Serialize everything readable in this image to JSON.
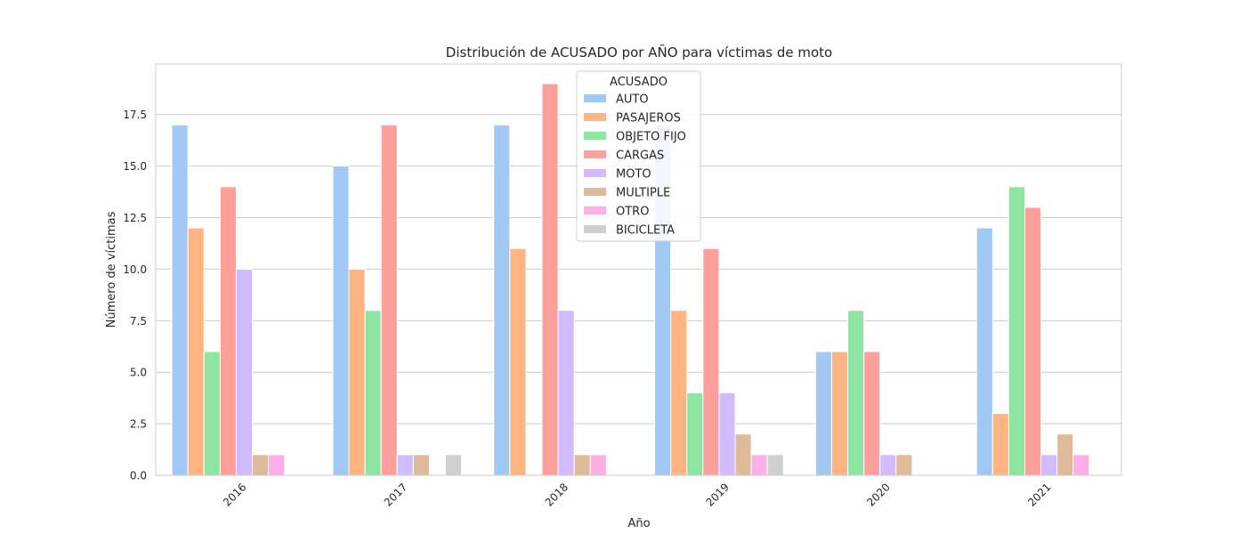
{
  "chart_data": {
    "type": "bar",
    "title": "Distribución de ACUSADO por AÑO para víctimas de moto",
    "xlabel": "Año",
    "ylabel": "Número de víctimas",
    "categories": [
      "2016",
      "2017",
      "2018",
      "2019",
      "2020",
      "2021"
    ],
    "ylim": [
      0,
      19.95
    ],
    "yticks": [
      "0.0",
      "2.5",
      "5.0",
      "7.5",
      "10.0",
      "12.5",
      "15.0",
      "17.5"
    ],
    "grid": true,
    "legend_title": "ACUSADO",
    "legend_position": "top-center",
    "series": [
      {
        "name": "AUTO",
        "color": "#a1c9f4",
        "values": [
          17,
          15,
          17,
          17,
          6,
          12
        ]
      },
      {
        "name": "PASAJEROS",
        "color": "#ffb482",
        "values": [
          12,
          10,
          11,
          8,
          6,
          3
        ]
      },
      {
        "name": "OBJETO FIJO",
        "color": "#8de5a1",
        "values": [
          6,
          8,
          0,
          4,
          8,
          14
        ]
      },
      {
        "name": "CARGAS",
        "color": "#ff9f9b",
        "values": [
          14,
          17,
          19,
          11,
          6,
          13
        ]
      },
      {
        "name": "MOTO",
        "color": "#d0bbff",
        "values": [
          10,
          1,
          8,
          4,
          1,
          1
        ]
      },
      {
        "name": "MULTIPLE",
        "color": "#debb9b",
        "values": [
          1,
          1,
          1,
          2,
          1,
          2
        ]
      },
      {
        "name": "OTRO",
        "color": "#fab0e4",
        "values": [
          1,
          0,
          1,
          1,
          0,
          1
        ]
      },
      {
        "name": "BICICLETA",
        "color": "#cfcfcf",
        "values": [
          0,
          1,
          0,
          1,
          0,
          0
        ]
      }
    ]
  }
}
